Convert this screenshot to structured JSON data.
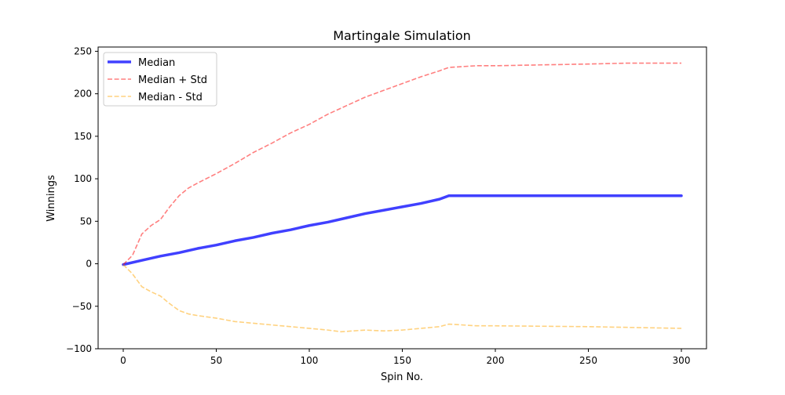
{
  "chart_data": {
    "type": "line",
    "title": "Martingale Simulation",
    "xlabel": "Spin No.",
    "ylabel": "Winnings",
    "xlim": [
      -13.5,
      313.5
    ],
    "ylim": [
      -100,
      255
    ],
    "xticks": [
      0,
      50,
      100,
      150,
      200,
      250,
      300
    ],
    "yticks": [
      -100,
      -50,
      0,
      50,
      100,
      150,
      200,
      250
    ],
    "grid": false,
    "legend_position": "top-left",
    "series": [
      {
        "name": "Median",
        "color": "#0000ff",
        "opacity": 0.75,
        "style": "solid",
        "width": 3.5,
        "x": [
          0,
          10,
          20,
          30,
          40,
          50,
          60,
          70,
          80,
          90,
          100,
          110,
          120,
          130,
          140,
          150,
          160,
          170,
          175,
          200,
          250,
          300
        ],
        "y": [
          -1,
          4,
          9,
          13,
          18,
          22,
          27,
          31,
          36,
          40,
          45,
          49,
          54,
          59,
          63,
          67,
          71,
          76,
          80,
          80,
          80,
          80
        ]
      },
      {
        "name": "Median + Std",
        "color": "#ff0000",
        "opacity": 0.5,
        "style": "dashed",
        "width": 1.6,
        "x": [
          0,
          5,
          10,
          15,
          20,
          25,
          30,
          35,
          40,
          50,
          60,
          70,
          80,
          90,
          100,
          110,
          120,
          130,
          140,
          150,
          160,
          170,
          175,
          190,
          200,
          250,
          270,
          300
        ],
        "y": [
          -1,
          10,
          35,
          45,
          52,
          67,
          80,
          89,
          95,
          106,
          118,
          131,
          142,
          154,
          164,
          176,
          186,
          196,
          204,
          212,
          220,
          227,
          231,
          233,
          233,
          235,
          236,
          236
        ]
      },
      {
        "name": "Median - Std",
        "color": "#ffa500",
        "opacity": 0.5,
        "style": "dashed",
        "width": 1.6,
        "x": [
          0,
          5,
          10,
          15,
          20,
          25,
          30,
          35,
          40,
          50,
          60,
          70,
          80,
          90,
          100,
          110,
          117,
          130,
          140,
          150,
          160,
          170,
          175,
          190,
          200,
          250,
          300
        ],
        "y": [
          -1,
          -12,
          -27,
          -33,
          -38,
          -47,
          -55,
          -59,
          -61,
          -64,
          -68,
          -70,
          -72,
          -74,
          -76,
          -78,
          -80,
          -78,
          -79,
          -78,
          -76,
          -74,
          -71,
          -73,
          -73,
          -74,
          -76
        ]
      }
    ]
  }
}
